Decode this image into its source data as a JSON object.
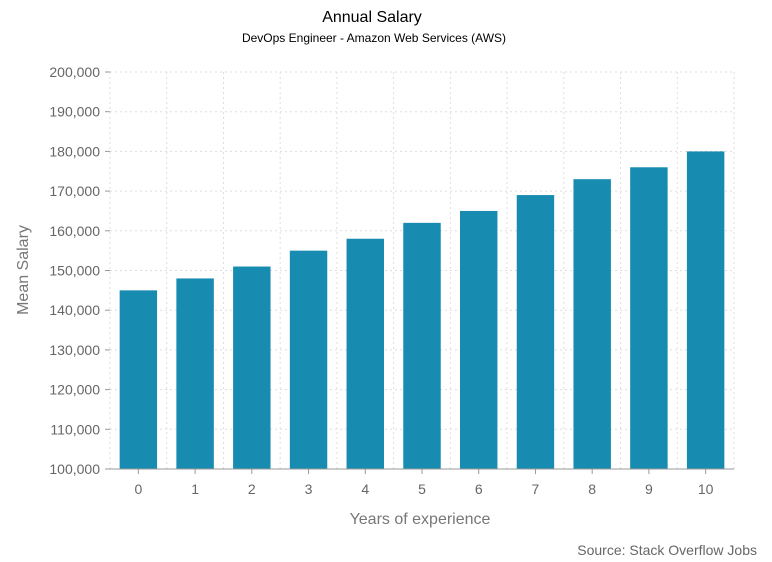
{
  "chart_data": {
    "type": "bar",
    "title": "Annual Salary",
    "subtitle": "DevOps Engineer - Amazon Web Services (AWS)",
    "xlabel": "Years of experience",
    "ylabel": "Mean Salary",
    "categories": [
      "0",
      "1",
      "2",
      "3",
      "4",
      "5",
      "6",
      "7",
      "8",
      "9",
      "10"
    ],
    "values": [
      145000,
      148000,
      151000,
      155000,
      158000,
      162000,
      165000,
      169000,
      173000,
      176000,
      180000
    ],
    "ylim": [
      100000,
      200000
    ],
    "y_ticks": [
      "100,000",
      "110,000",
      "120,000",
      "130,000",
      "140,000",
      "150,000",
      "160,000",
      "170,000",
      "180,000",
      "190,000",
      "200,000"
    ],
    "grid": true,
    "legend": "none",
    "bar_color": "#178bb0",
    "source": "Source: Stack Overflow Jobs"
  }
}
